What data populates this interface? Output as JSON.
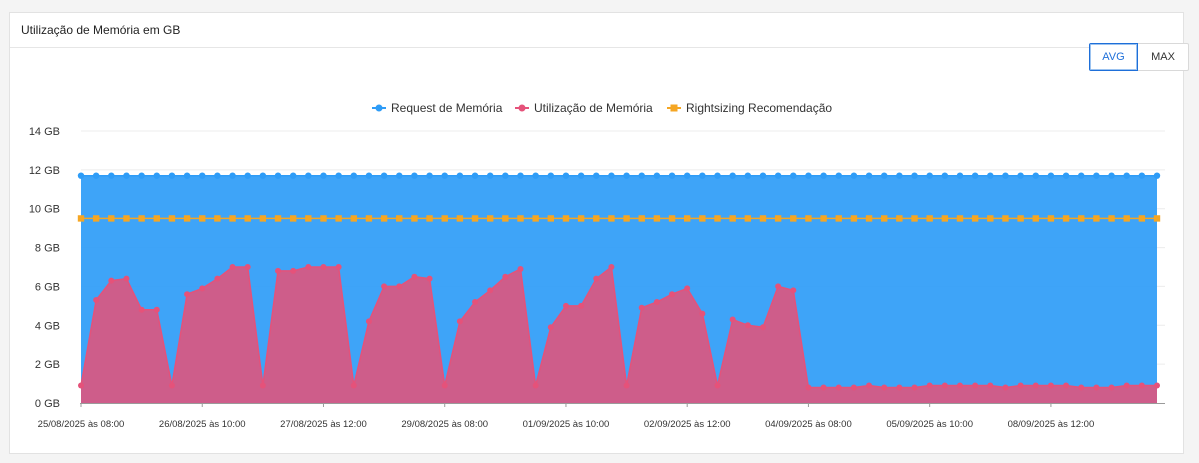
{
  "card": {
    "title": "Utilização de Memória em GB"
  },
  "toggle": {
    "avg_label": "AVG",
    "max_label": "MAX",
    "selected": "AVG"
  },
  "colors": {
    "request": "#2e9cf7",
    "usage": "#e5527a",
    "rightsizing": "#f5a623",
    "accent": "#1e6fd9"
  },
  "chart_data": {
    "type": "area",
    "ylabel_unit": "GB",
    "ylim": [
      0,
      14
    ],
    "yticks": [
      "0 GB",
      "2 GB",
      "4 GB",
      "6 GB",
      "8 GB",
      "10 GB",
      "12 GB",
      "14 GB"
    ],
    "ytick_values": [
      0,
      2,
      4,
      6,
      8,
      10,
      12,
      14
    ],
    "xtick_labels": [
      {
        "label": "25/08/2025 às 08:00",
        "index": 0
      },
      {
        "label": "26/08/2025 às 10:00",
        "index": 8
      },
      {
        "label": "27/08/2025 às 12:00",
        "index": 16
      },
      {
        "label": "29/08/2025 às 08:00",
        "index": 24
      },
      {
        "label": "01/09/2025 às 10:00",
        "index": 32
      },
      {
        "label": "02/09/2025 às 12:00",
        "index": 40
      },
      {
        "label": "04/09/2025 às 08:00",
        "index": 48
      },
      {
        "label": "05/09/2025 às 10:00",
        "index": 56
      },
      {
        "label": "08/09/2025 às 12:00",
        "index": 64
      }
    ],
    "grid": true,
    "legend_position": "top",
    "series": [
      {
        "name": "Request de Memória",
        "values": [
          11.7,
          11.7,
          11.7,
          11.7,
          11.7,
          11.7,
          11.7,
          11.7,
          11.7,
          11.7,
          11.7,
          11.7,
          11.7,
          11.7,
          11.7,
          11.7,
          11.7,
          11.7,
          11.7,
          11.7,
          11.7,
          11.7,
          11.7,
          11.7,
          11.7,
          11.7,
          11.7,
          11.7,
          11.7,
          11.7,
          11.7,
          11.7,
          11.7,
          11.7,
          11.7,
          11.7,
          11.7,
          11.7,
          11.7,
          11.7,
          11.7,
          11.7,
          11.7,
          11.7,
          11.7,
          11.7,
          11.7,
          11.7,
          11.7,
          11.7,
          11.7,
          11.7,
          11.7,
          11.7,
          11.7,
          11.7,
          11.7,
          11.7,
          11.7,
          11.7,
          11.7,
          11.7,
          11.7,
          11.7,
          11.7,
          11.7,
          11.7,
          11.7,
          11.7,
          11.7,
          11.7,
          11.7
        ]
      },
      {
        "name": "Utilização de Memória",
        "values": [
          0.9,
          5.3,
          6.3,
          6.4,
          4.8,
          4.8,
          0.9,
          5.6,
          5.9,
          6.4,
          7.0,
          7.0,
          0.9,
          6.8,
          6.8,
          7.0,
          7.0,
          7.0,
          0.9,
          4.2,
          6.0,
          6.0,
          6.5,
          6.4,
          0.9,
          4.2,
          5.2,
          5.8,
          6.5,
          6.9,
          0.9,
          3.9,
          5.0,
          5.0,
          6.4,
          7.0,
          0.9,
          4.9,
          5.2,
          5.6,
          5.9,
          4.6,
          0.9,
          4.3,
          4.0,
          3.9,
          6.0,
          5.8,
          0.8,
          0.8,
          0.8,
          0.8,
          0.9,
          0.8,
          0.8,
          0.8,
          0.9,
          0.9,
          0.9,
          0.9,
          0.9,
          0.8,
          0.9,
          0.9,
          0.9,
          0.9,
          0.8,
          0.8,
          0.8,
          0.9,
          0.9,
          0.9
        ]
      },
      {
        "name": "Rightsizing Recomendação",
        "values": [
          9.5,
          9.5,
          9.5,
          9.5,
          9.5,
          9.5,
          9.5,
          9.5,
          9.5,
          9.5,
          9.5,
          9.5,
          9.5,
          9.5,
          9.5,
          9.5,
          9.5,
          9.5,
          9.5,
          9.5,
          9.5,
          9.5,
          9.5,
          9.5,
          9.5,
          9.5,
          9.5,
          9.5,
          9.5,
          9.5,
          9.5,
          9.5,
          9.5,
          9.5,
          9.5,
          9.5,
          9.5,
          9.5,
          9.5,
          9.5,
          9.5,
          9.5,
          9.5,
          9.5,
          9.5,
          9.5,
          9.5,
          9.5,
          9.5,
          9.5,
          9.5,
          9.5,
          9.5,
          9.5,
          9.5,
          9.5,
          9.5,
          9.5,
          9.5,
          9.5,
          9.5,
          9.5,
          9.5,
          9.5,
          9.5,
          9.5,
          9.5,
          9.5,
          9.5,
          9.5,
          9.5,
          9.5
        ]
      }
    ]
  }
}
